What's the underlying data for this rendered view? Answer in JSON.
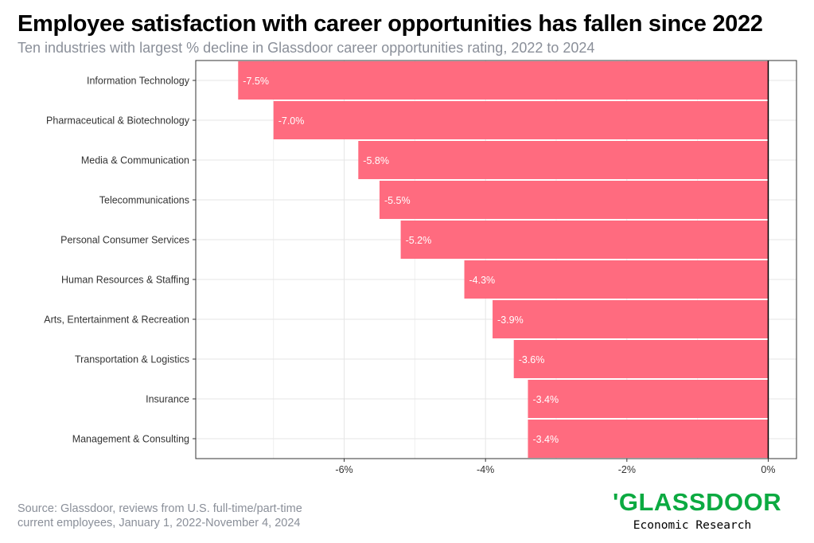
{
  "header": {
    "title": "Employee satisfaction with career opportunities has fallen since 2022",
    "subtitle": "Ten industries with largest % decline in Glassdoor career opportunities rating, 2022 to 2024"
  },
  "chart_data": {
    "type": "bar",
    "orientation": "horizontal",
    "categories": [
      "Information Technology",
      "Pharmaceutical & Biotechnology",
      "Media & Communication",
      "Telecommunications",
      "Personal Consumer Services",
      "Human Resources & Staffing",
      "Arts, Entertainment & Recreation",
      "Transportation & Logistics",
      "Insurance",
      "Management & Consulting"
    ],
    "values": [
      -7.5,
      -7.0,
      -5.8,
      -5.5,
      -5.2,
      -4.3,
      -3.9,
      -3.6,
      -3.4,
      -3.4
    ],
    "data_labels": [
      "-7.5%",
      "-7.0%",
      "-5.8%",
      "-5.5%",
      "-5.2%",
      "-4.3%",
      "-3.9%",
      "-3.6%",
      "-3.4%",
      "-3.4%"
    ],
    "xlim": [
      -8.1,
      0.4
    ],
    "x_ticks": [
      -6,
      -4,
      -2,
      0
    ],
    "x_tick_labels": [
      "-6%",
      "-4%",
      "-2%",
      "0%"
    ],
    "grid": true,
    "bar_color": "#ff6b7f",
    "grid_color": "#e6e6e6",
    "xlabel": "",
    "ylabel": ""
  },
  "footer": {
    "source_line1": "Source: Glassdoor, reviews from U.S. full-time/part-time",
    "source_line2": "current employees, January 1, 2022-November 4, 2024",
    "logo_text": "'GLASSDOOR",
    "logo_sub": "Economic Research",
    "logo_color": "#0caa41"
  }
}
